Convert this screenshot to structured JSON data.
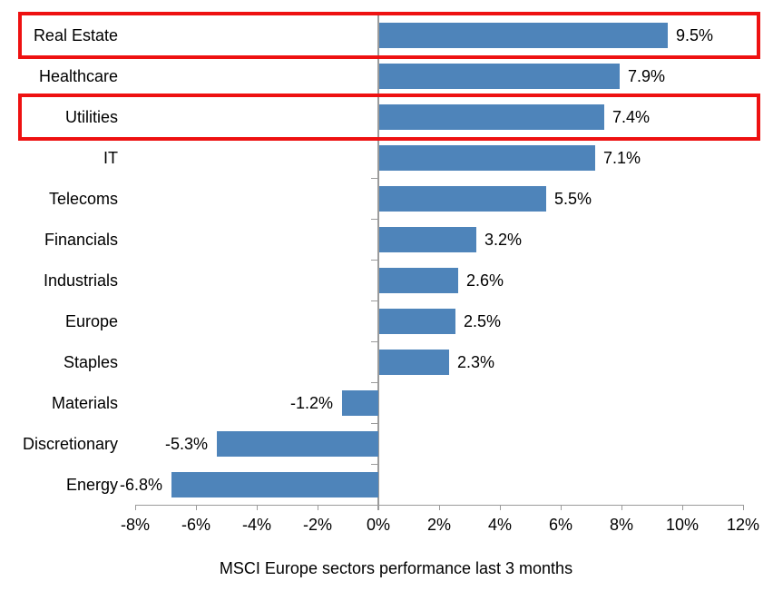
{
  "chart_data": {
    "type": "bar",
    "orientation": "horizontal",
    "title": "",
    "categories": [
      "Real Estate",
      "Healthcare",
      "Utilities",
      "IT",
      "Telecoms",
      "Financials",
      "Industrials",
      "Europe",
      "Staples",
      "Materials",
      "Discretionary",
      "Energy"
    ],
    "values": [
      9.5,
      7.9,
      7.4,
      7.1,
      5.5,
      3.2,
      2.6,
      2.5,
      2.3,
      -1.2,
      -5.3,
      -6.8
    ],
    "data_labels": [
      "9.5%",
      "7.9%",
      "7.4%",
      "7.1%",
      "5.5%",
      "3.2%",
      "2.6%",
      "2.5%",
      "2.3%",
      "-1.2%",
      "-5.3%",
      "-6.8%"
    ],
    "highlighted_categories": [
      "Real Estate",
      "Utilities"
    ],
    "highlighted_indices": [
      0,
      2
    ],
    "x_axis": {
      "min": -8,
      "max": 12,
      "tick_values": [
        -8,
        -6,
        -4,
        -2,
        0,
        2,
        4,
        6,
        8,
        10,
        12
      ],
      "tick_labels": [
        "-8%",
        "-6%",
        "-4%",
        "-2%",
        "0%",
        "2%",
        "4%",
        "6%",
        "8%",
        "10%",
        "12%"
      ]
    },
    "grid": false,
    "legend": {
      "position": "bottom",
      "label": "MSCI Europe sectors performance last 3 months"
    },
    "colors": {
      "bar": "#4e84ba",
      "highlight_box": "#ee1111",
      "axis": "#9b9b9b",
      "text": "#000000"
    }
  }
}
